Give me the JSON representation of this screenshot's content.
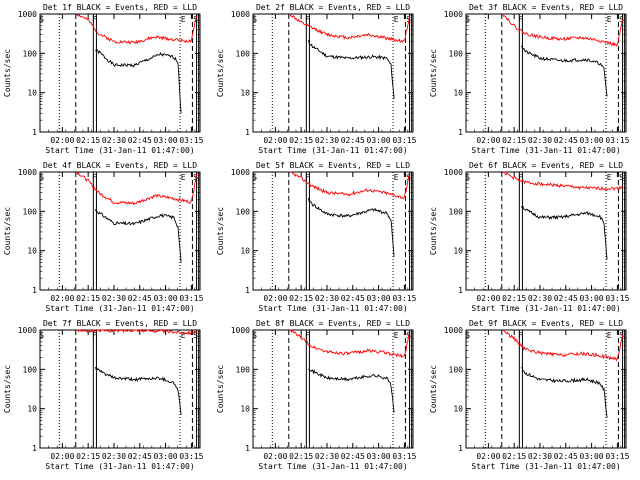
{
  "chart_data": [
    {
      "type": "line",
      "title": "Det 1f BLACK = Events, RED = LLD",
      "ylabel": "Counts/sec",
      "xlabel": "Start Time (31-Jan-11 01:47:00)",
      "x_ticks": [
        "02:00",
        "02:15",
        "02:30",
        "02:45",
        "03:00",
        "03:15"
      ],
      "y_ticks": [
        "1",
        "10",
        "100",
        "1000"
      ],
      "y_log": true,
      "ylim": [
        1,
        1000
      ],
      "markers": [
        "S",
        "F",
        "E",
        "S"
      ],
      "series": [
        {
          "color": "#000000",
          "points": [
            [
              2.32,
              120
            ],
            [
              2.36,
              105
            ],
            [
              2.5,
              50
            ],
            [
              2.7,
              50
            ],
            [
              2.95,
              95
            ],
            [
              3.08,
              80
            ],
            [
              3.12,
              60
            ],
            [
              3.15,
              3
            ]
          ]
        },
        {
          "color": "#ff0000",
          "points": [
            [
              2.14,
              1000
            ],
            [
              2.25,
              700
            ],
            [
              2.35,
              320
            ],
            [
              2.5,
              200
            ],
            [
              2.7,
              190
            ],
            [
              2.9,
              260
            ],
            [
              3.05,
              230
            ],
            [
              3.25,
              200
            ],
            [
              3.3,
              900
            ]
          ]
        }
      ]
    },
    {
      "type": "line",
      "title": "Det 2f BLACK = Events, RED = LLD",
      "ylabel": "Counts/sec",
      "xlabel": "Start Time (31-Jan-11 01:47:00)",
      "x_ticks": [
        "02:00",
        "02:15",
        "02:30",
        "02:45",
        "03:00",
        "03:15"
      ],
      "y_ticks": [
        "1",
        "10",
        "100",
        "1000"
      ],
      "y_log": true,
      "ylim": [
        1,
        1000
      ],
      "markers": [
        "S",
        "F",
        "E",
        "S"
      ],
      "series": [
        {
          "color": "#000000",
          "points": [
            [
              2.32,
              200
            ],
            [
              2.36,
              150
            ],
            [
              2.5,
              85
            ],
            [
              2.7,
              75
            ],
            [
              2.95,
              82
            ],
            [
              3.08,
              75
            ],
            [
              3.12,
              50
            ],
            [
              3.15,
              7
            ]
          ]
        },
        {
          "color": "#ff0000",
          "points": [
            [
              2.14,
              1000
            ],
            [
              2.25,
              600
            ],
            [
              2.35,
              450
            ],
            [
              2.5,
              300
            ],
            [
              2.7,
              250
            ],
            [
              2.9,
              300
            ],
            [
              3.05,
              250
            ],
            [
              3.25,
              200
            ],
            [
              3.3,
              900
            ]
          ]
        }
      ]
    },
    {
      "type": "line",
      "title": "Det 3f BLACK = Events, RED = LLD",
      "ylabel": "Counts/sec",
      "xlabel": "Start Time (31-Jan-11 01:47:00)",
      "x_ticks": [
        "02:00",
        "02:15",
        "02:30",
        "02:45",
        "03:00",
        "03:15"
      ],
      "y_ticks": [
        "1",
        "10",
        "100",
        "1000"
      ],
      "y_log": true,
      "ylim": [
        1,
        1000
      ],
      "markers": [
        "S",
        "F",
        "E",
        "S"
      ],
      "series": [
        {
          "color": "#000000",
          "points": [
            [
              2.32,
              160
            ],
            [
              2.36,
              110
            ],
            [
              2.5,
              75
            ],
            [
              2.7,
              65
            ],
            [
              2.95,
              70
            ],
            [
              3.08,
              55
            ],
            [
              3.12,
              40
            ],
            [
              3.15,
              8
            ]
          ]
        },
        {
          "color": "#ff0000",
          "points": [
            [
              2.14,
              1000
            ],
            [
              2.25,
              500
            ],
            [
              2.35,
              320
            ],
            [
              2.5,
              260
            ],
            [
              2.7,
              230
            ],
            [
              2.9,
              250
            ],
            [
              3.05,
              220
            ],
            [
              3.25,
              160
            ],
            [
              3.3,
              700
            ]
          ]
        }
      ]
    },
    {
      "type": "line",
      "title": "Det 4f BLACK = Events, RED = LLD",
      "ylabel": "Counts/sec",
      "xlabel": "Start Time (31-Jan-11 01:47:00)",
      "x_ticks": [
        "02:00",
        "02:15",
        "02:30",
        "02:45",
        "03:00",
        "03:15"
      ],
      "y_ticks": [
        "1",
        "10",
        "100",
        "1000"
      ],
      "y_log": true,
      "ylim": [
        1,
        1000
      ],
      "markers": [
        "S",
        "F",
        "E",
        "S"
      ],
      "series": [
        {
          "color": "#000000",
          "points": [
            [
              2.32,
              110
            ],
            [
              2.36,
              90
            ],
            [
              2.5,
              50
            ],
            [
              2.7,
              48
            ],
            [
              2.95,
              80
            ],
            [
              3.08,
              70
            ],
            [
              3.12,
              40
            ],
            [
              3.15,
              5
            ]
          ]
        },
        {
          "color": "#ff0000",
          "points": [
            [
              2.14,
              1000
            ],
            [
              2.25,
              600
            ],
            [
              2.35,
              300
            ],
            [
              2.5,
              170
            ],
            [
              2.7,
              160
            ],
            [
              2.9,
              250
            ],
            [
              3.05,
              220
            ],
            [
              3.25,
              170
            ],
            [
              3.3,
              900
            ]
          ]
        }
      ]
    },
    {
      "type": "line",
      "title": "Det 5f BLACK = Events, RED = LLD",
      "ylabel": "Counts/sec",
      "xlabel": "Start Time (31-Jan-11 01:47:00)",
      "x_ticks": [
        "02:00",
        "02:15",
        "02:30",
        "02:45",
        "03:00",
        "03:15"
      ],
      "y_ticks": [
        "1",
        "10",
        "100",
        "1000"
      ],
      "y_log": true,
      "ylim": [
        1,
        1000
      ],
      "markers": [
        "S",
        "F",
        "E",
        "S"
      ],
      "series": [
        {
          "color": "#000000",
          "points": [
            [
              2.32,
              200
            ],
            [
              2.36,
              150
            ],
            [
              2.5,
              85
            ],
            [
              2.7,
              75
            ],
            [
              2.95,
              110
            ],
            [
              3.08,
              90
            ],
            [
              3.12,
              60
            ],
            [
              3.15,
              7
            ]
          ]
        },
        {
          "color": "#ff0000",
          "points": [
            [
              2.14,
              1000
            ],
            [
              2.25,
              700
            ],
            [
              2.35,
              450
            ],
            [
              2.5,
              300
            ],
            [
              2.7,
              270
            ],
            [
              2.9,
              350
            ],
            [
              3.05,
              300
            ],
            [
              3.25,
              220
            ],
            [
              3.3,
              900
            ]
          ]
        }
      ]
    },
    {
      "type": "line",
      "title": "Det 6f BLACK = Events, RED = LLD",
      "ylabel": "Counts/sec",
      "xlabel": "Start Time (31-Jan-11 01:47:00)",
      "x_ticks": [
        "02:00",
        "02:15",
        "02:30",
        "02:45",
        "03:00",
        "03:15"
      ],
      "y_ticks": [
        "1",
        "10",
        "100",
        "1000"
      ],
      "y_log": true,
      "ylim": [
        1,
        1000
      ],
      "markers": [
        "S",
        "F",
        "E",
        "S"
      ],
      "series": [
        {
          "color": "#000000",
          "points": [
            [
              2.32,
              140
            ],
            [
              2.36,
              110
            ],
            [
              2.5,
              70
            ],
            [
              2.7,
              70
            ],
            [
              2.95,
              90
            ],
            [
              3.08,
              75
            ],
            [
              3.12,
              50
            ],
            [
              3.15,
              6
            ]
          ]
        },
        {
          "color": "#ff0000",
          "points": [
            [
              2.14,
              1000
            ],
            [
              2.25,
              700
            ],
            [
              2.35,
              550
            ],
            [
              2.5,
              500
            ],
            [
              2.7,
              450
            ],
            [
              2.9,
              400
            ],
            [
              3.05,
              380
            ],
            [
              3.25,
              380
            ],
            [
              3.3,
              420
            ]
          ]
        }
      ]
    },
    {
      "type": "line",
      "title": "Det 7f BLACK = Events, RED = LLD",
      "ylabel": "Counts/sec",
      "xlabel": "Start Time (31-Jan-11 01:47:00)",
      "x_ticks": [
        "02:00",
        "02:15",
        "02:30",
        "02:45",
        "03:00",
        "03:15"
      ],
      "y_ticks": [
        "1",
        "10",
        "100",
        "1000"
      ],
      "y_log": true,
      "ylim": [
        1,
        1000
      ],
      "markers": [
        "S",
        "F",
        "E",
        "S"
      ],
      "series": [
        {
          "color": "#000000",
          "points": [
            [
              2.32,
              110
            ],
            [
              2.36,
              90
            ],
            [
              2.5,
              60
            ],
            [
              2.7,
              55
            ],
            [
              2.95,
              60
            ],
            [
              3.08,
              45
            ],
            [
              3.12,
              30
            ],
            [
              3.15,
              7
            ]
          ]
        },
        {
          "color": "#ff0000",
          "points": [
            [
              2.14,
              1000
            ],
            [
              2.25,
              950
            ],
            [
              2.35,
              1000
            ],
            [
              2.5,
              950
            ],
            [
              2.7,
              1000
            ],
            [
              2.9,
              950
            ],
            [
              3.05,
              900
            ],
            [
              3.25,
              850
            ],
            [
              3.3,
              950
            ]
          ]
        }
      ]
    },
    {
      "type": "line",
      "title": "Det 8f BLACK = Events, RED = LLD",
      "ylabel": "Counts/sec",
      "xlabel": "Start Time (31-Jan-11 01:47:00)",
      "x_ticks": [
        "02:00",
        "02:15",
        "02:30",
        "02:45",
        "03:00",
        "03:15"
      ],
      "y_ticks": [
        "1",
        "10",
        "100",
        "1000"
      ],
      "y_log": true,
      "ylim": [
        1,
        1000
      ],
      "markers": [
        "S",
        "F",
        "E",
        "S"
      ],
      "series": [
        {
          "color": "#000000",
          "points": [
            [
              2.32,
              110
            ],
            [
              2.36,
              90
            ],
            [
              2.5,
              60
            ],
            [
              2.7,
              55
            ],
            [
              2.95,
              70
            ],
            [
              3.08,
              60
            ],
            [
              3.12,
              40
            ],
            [
              3.15,
              8
            ]
          ]
        },
        {
          "color": "#ff0000",
          "points": [
            [
              2.14,
              1000
            ],
            [
              2.25,
              650
            ],
            [
              2.35,
              380
            ],
            [
              2.5,
              280
            ],
            [
              2.7,
              250
            ],
            [
              2.9,
              300
            ],
            [
              3.05,
              270
            ],
            [
              3.25,
              210
            ],
            [
              3.3,
              900
            ]
          ]
        }
      ]
    },
    {
      "type": "line",
      "title": "Det 9f BLACK = Events, RED = LLD",
      "ylabel": "Counts/sec",
      "xlabel": "Start Time (31-Jan-11 01:47:00)",
      "x_ticks": [
        "02:00",
        "02:15",
        "02:30",
        "02:45",
        "03:00",
        "03:15"
      ],
      "y_ticks": [
        "1",
        "10",
        "100",
        "1000"
      ],
      "y_log": true,
      "ylim": [
        1,
        1000
      ],
      "markers": [
        "S",
        "F",
        "E",
        "S"
      ],
      "series": [
        {
          "color": "#000000",
          "points": [
            [
              2.32,
              110
            ],
            [
              2.36,
              80
            ],
            [
              2.5,
              55
            ],
            [
              2.7,
              50
            ],
            [
              2.95,
              55
            ],
            [
              3.08,
              45
            ],
            [
              3.12,
              30
            ],
            [
              3.15,
              6
            ]
          ]
        },
        {
          "color": "#ff0000",
          "points": [
            [
              2.14,
              1000
            ],
            [
              2.25,
              600
            ],
            [
              2.35,
              330
            ],
            [
              2.5,
              260
            ],
            [
              2.7,
              230
            ],
            [
              2.9,
              250
            ],
            [
              3.05,
              230
            ],
            [
              3.25,
              180
            ],
            [
              3.3,
              750
            ]
          ]
        }
      ]
    }
  ],
  "colors": {
    "events": "#000000",
    "lld": "#ff0000"
  }
}
